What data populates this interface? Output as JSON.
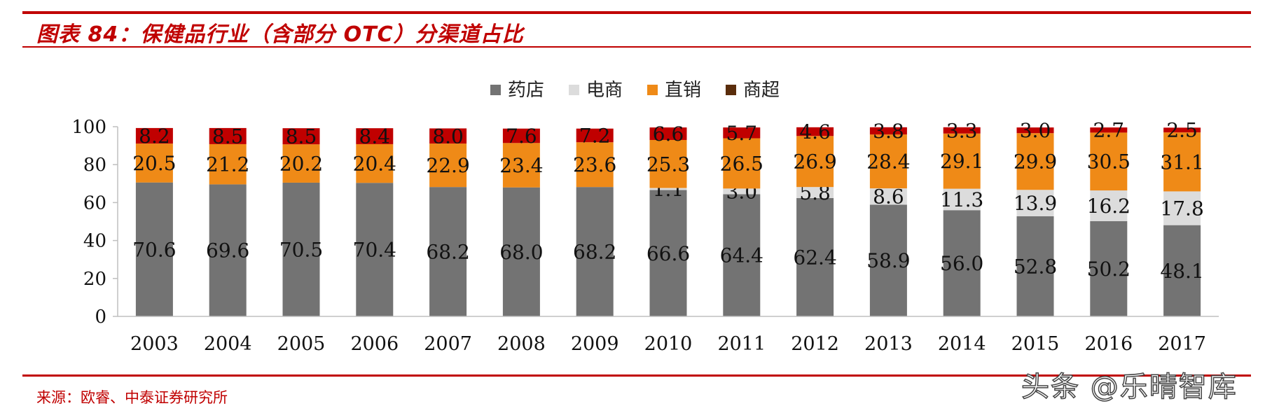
{
  "header": {
    "title": "图表 84：保健品行业（含部分 OTC）分渠道占比"
  },
  "footer": {
    "source": "来源：欧睿、中泰证券研究所",
    "watermark": "头条 @乐晴智库"
  },
  "colors": {
    "accent": "#c00000",
    "series": [
      "#737373",
      "#dcdcdc",
      "#ef8a17",
      "#c00000"
    ],
    "legend_swatches": [
      "#737373",
      "#dcdcdc",
      "#ef8a17",
      "#5a2d0c"
    ]
  },
  "chart_data": {
    "type": "bar",
    "stacked": true,
    "categories": [
      "2003",
      "2004",
      "2005",
      "2006",
      "2007",
      "2008",
      "2009",
      "2010",
      "2011",
      "2012",
      "2013",
      "2014",
      "2015",
      "2016",
      "2017"
    ],
    "series": [
      {
        "name": "药店",
        "values": [
          70.6,
          69.6,
          70.5,
          70.4,
          68.2,
          68.0,
          68.2,
          66.6,
          64.4,
          62.4,
          58.9,
          56.0,
          52.8,
          50.2,
          48.1
        ]
      },
      {
        "name": "电商",
        "values": [
          0,
          0,
          0,
          0,
          0,
          0,
          0,
          1.1,
          3.0,
          5.8,
          8.6,
          11.3,
          13.9,
          16.2,
          17.8
        ]
      },
      {
        "name": "直销",
        "values": [
          20.5,
          21.2,
          20.2,
          20.4,
          22.9,
          23.4,
          23.6,
          25.3,
          26.5,
          26.9,
          28.4,
          29.1,
          29.9,
          30.5,
          31.1
        ]
      },
      {
        "name": "商超",
        "values": [
          8.2,
          8.5,
          8.5,
          8.4,
          8.0,
          7.6,
          7.2,
          6.6,
          5.7,
          4.6,
          3.8,
          3.3,
          3.0,
          2.7,
          2.5
        ]
      }
    ],
    "legend": [
      "药店",
      "电商",
      "直销",
      "商超"
    ],
    "legend_position": "top-center",
    "yticks": [
      "0",
      "20",
      "40",
      "60",
      "80",
      "100"
    ],
    "ylim": [
      0,
      100
    ],
    "title": "图表 84：保健品行业（含部分 OTC）分渠道占比",
    "xlabel": "",
    "ylabel": "",
    "grid": false
  }
}
